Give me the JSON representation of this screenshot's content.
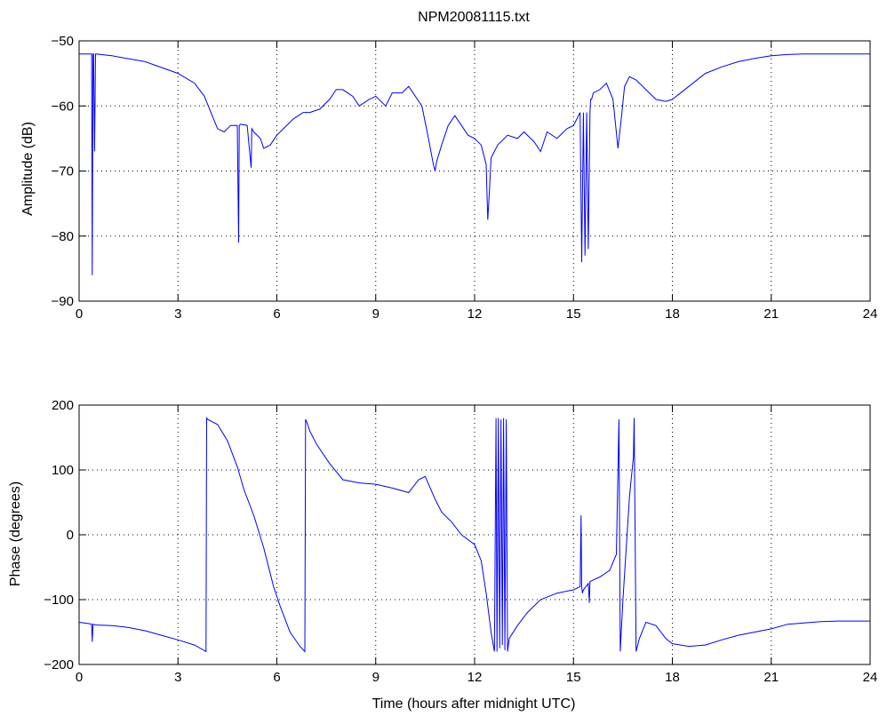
{
  "window": {
    "title": "NPM20081115.txt"
  },
  "colors": {
    "series": "#0000ff",
    "axes": "#000000",
    "background": "#ffffff"
  },
  "chart_data": [
    {
      "type": "line",
      "title": "NPM20081115.txt",
      "xlabel": "",
      "ylabel": "Amplitude (dB)",
      "xlim": [
        0,
        24
      ],
      "ylim": [
        -90,
        -50
      ],
      "xticks": [
        "0",
        "3",
        "6",
        "9",
        "12",
        "15",
        "18",
        "21",
        "24"
      ],
      "yticks": [
        "-90",
        "-80",
        "-70",
        "-60",
        "-50"
      ],
      "grid": true,
      "series": [
        {
          "x": [
            0,
            0.35,
            0.38,
            0.4,
            0.42,
            0.44,
            0.47,
            0.5,
            1,
            2,
            3,
            3.5,
            3.8,
            4,
            4.2,
            4.4,
            4.6,
            4.8,
            4.84,
            4.86,
            4.9,
            5.1,
            5.22,
            5.24,
            5.3,
            5.5,
            5.6,
            5.8,
            6.0,
            6.2,
            6.5,
            6.8,
            7.0,
            7.3,
            7.6,
            7.8,
            8.0,
            8.3,
            8.5,
            8.8,
            9.0,
            9.3,
            9.5,
            9.8,
            10.0,
            10.2,
            10.4,
            10.6,
            10.75,
            10.8,
            10.85,
            11.0,
            11.2,
            11.4,
            11.6,
            11.8,
            12.0,
            12.2,
            12.35,
            12.4,
            12.45,
            12.5,
            12.7,
            13.0,
            13.3,
            13.5,
            13.8,
            14.0,
            14.2,
            14.5,
            14.8,
            15.0,
            15.2,
            15.25,
            15.3,
            15.35,
            15.4,
            15.45,
            15.5,
            15.52,
            15.55,
            15.6,
            15.8,
            16.0,
            16.2,
            16.35,
            16.45,
            16.55,
            16.7,
            16.9,
            17.2,
            17.5,
            17.8,
            18.0,
            18.5,
            19.0,
            19.5,
            20.0,
            20.5,
            21.0,
            21.5,
            22.0,
            22.5,
            23.0,
            24.0
          ],
          "values": [
            -52,
            -52,
            -52,
            -86,
            -52,
            -52,
            -67,
            -52,
            -52.3,
            -53.2,
            -55,
            -56.5,
            -58.5,
            -61,
            -63.5,
            -64,
            -63,
            -63,
            -81,
            -63,
            -62.8,
            -63,
            -69.5,
            -63.5,
            -64,
            -65,
            -66.5,
            -66,
            -64.5,
            -63.5,
            -62,
            -61,
            -61,
            -60.5,
            -59,
            -57.5,
            -57.5,
            -58.5,
            -60,
            -59,
            -58.5,
            -60,
            -58,
            -58,
            -57,
            -58.5,
            -60,
            -65,
            -69,
            -70,
            -68.5,
            -66,
            -63,
            -61.5,
            -63,
            -64.5,
            -65,
            -66,
            -69,
            -77.5,
            -73,
            -68,
            -66,
            -64.5,
            -65,
            -64,
            -65.5,
            -67,
            -64,
            -65,
            -63.5,
            -63,
            -61,
            -84,
            -61,
            -83,
            -61,
            -82,
            -61,
            -59,
            -59,
            -58,
            -57.5,
            -56.5,
            -59,
            -66.5,
            -62,
            -57,
            -55.5,
            -56,
            -57.5,
            -59,
            -59.3,
            -59,
            -57,
            -55,
            -54,
            -53.2,
            -52.7,
            -52.3,
            -52.1,
            -52,
            -52,
            -52,
            -52
          ]
        }
      ]
    },
    {
      "type": "line",
      "title": "",
      "xlabel": "Time (hours after midnight UTC)",
      "ylabel": "Phase (degrees)",
      "xlim": [
        0,
        24
      ],
      "ylim": [
        -200,
        200
      ],
      "xticks": [
        "0",
        "3",
        "6",
        "9",
        "12",
        "15",
        "18",
        "21",
        "24"
      ],
      "yticks": [
        "-200",
        "-100",
        "0",
        "100",
        "200"
      ],
      "grid": true,
      "series": [
        {
          "x": [
            0,
            0.3,
            0.38,
            0.4,
            0.42,
            0.5,
            1,
            1.5,
            2,
            2.5,
            3,
            3.5,
            3.85,
            3.87,
            3.9,
            4.2,
            4.5,
            4.8,
            5.0,
            5.3,
            5.6,
            5.9,
            6.1,
            6.4,
            6.7,
            6.85,
            6.87,
            6.9,
            7.0,
            7.2,
            7.6,
            8.0,
            8.5,
            9.0,
            9.5,
            10.0,
            10.3,
            10.5,
            10.8,
            11.0,
            11.3,
            11.6,
            12.0,
            12.2,
            12.35,
            12.5,
            12.6,
            12.65,
            12.68,
            12.72,
            12.76,
            12.8,
            12.84,
            12.88,
            12.92,
            12.96,
            13.0,
            13.05,
            13.3,
            13.6,
            14.0,
            14.5,
            15.0,
            15.2,
            15.23,
            15.25,
            15.27,
            15.3,
            15.45,
            15.48,
            15.5,
            15.8,
            16.1,
            16.3,
            16.38,
            16.42,
            16.45,
            16.5,
            16.6,
            16.7,
            16.82,
            16.84,
            16.9,
            17.0,
            17.2,
            17.5,
            17.8,
            18.0,
            18.5,
            19.0,
            19.5,
            20.0,
            20.5,
            21.0,
            21.5,
            22.0,
            22.5,
            23.0,
            24.0
          ],
          "values": [
            -135,
            -137,
            -138,
            -165,
            -138,
            -139,
            -140,
            -143,
            -148,
            -155,
            -162,
            -170,
            -180,
            180,
            178,
            170,
            145,
            105,
            70,
            30,
            -20,
            -80,
            -110,
            -150,
            -172,
            -180,
            178,
            175,
            160,
            140,
            110,
            85,
            80,
            78,
            72,
            65,
            85,
            90,
            55,
            35,
            20,
            0,
            -15,
            -40,
            -90,
            -150,
            -180,
            180,
            -180,
            180,
            -175,
            178,
            -170,
            180,
            -178,
            178,
            -180,
            -160,
            -140,
            -120,
            -100,
            -90,
            -85,
            -80,
            30,
            -80,
            -90,
            -85,
            -75,
            -105,
            -72,
            -65,
            -55,
            -30,
            178,
            -180,
            -150,
            -100,
            -20,
            60,
            120,
            180,
            -180,
            -160,
            -135,
            -140,
            -160,
            -168,
            -172,
            -170,
            -162,
            -155,
            -150,
            -145,
            -138,
            -136,
            -134,
            -133,
            -133
          ]
        }
      ]
    }
  ]
}
